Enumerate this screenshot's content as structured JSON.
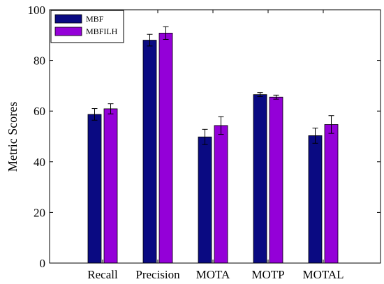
{
  "chart_data": {
    "type": "bar",
    "title": "",
    "xlabel": "",
    "ylabel": "Metric Scores",
    "ylim": [
      0,
      100
    ],
    "yticks": [
      0,
      20,
      40,
      60,
      80,
      100
    ],
    "grid": false,
    "legend_position": "top-left",
    "categories": [
      "Recall",
      "Precision",
      "MOTA",
      "MOTP",
      "MOTAL"
    ],
    "series": [
      {
        "name": "MBF",
        "color": "#0a0a82",
        "values": [
          58.7,
          88.0,
          49.8,
          66.5,
          50.3
        ],
        "errors": [
          2.3,
          2.3,
          3.0,
          0.8,
          3.0
        ]
      },
      {
        "name": "MBFILH",
        "color": "#9400d8",
        "values": [
          60.9,
          90.8,
          54.3,
          65.5,
          54.7
        ],
        "errors": [
          2.0,
          2.5,
          3.5,
          0.8,
          3.5
        ]
      }
    ]
  }
}
